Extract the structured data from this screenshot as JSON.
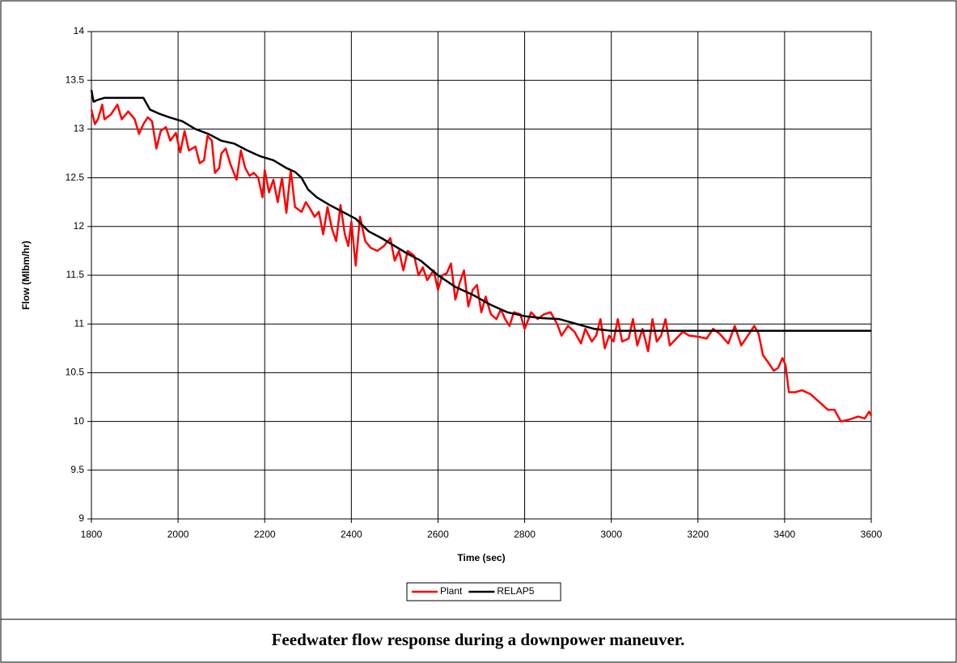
{
  "chart_data": {
    "type": "line",
    "caption": "Feedwater flow response during a downpower maneuver.",
    "x_label": "Time (sec)",
    "y_label": "Flow (Mlbm/hr)",
    "xlim": [
      1800,
      3600
    ],
    "xticks": [
      1800,
      2000,
      2200,
      2400,
      2600,
      2800,
      3000,
      3200,
      3400,
      3600
    ],
    "ylim": [
      9,
      14
    ],
    "yticks": [
      9,
      9.5,
      10,
      10.5,
      11,
      11.5,
      12,
      12.5,
      13,
      13.5,
      14
    ],
    "grid": true,
    "legend": "bottom",
    "series": [
      {
        "name": "Plant",
        "color": "#ff0000",
        "x": [
          1800,
          1808,
          1815,
          1825,
          1830,
          1845,
          1860,
          1870,
          1885,
          1900,
          1910,
          1920,
          1930,
          1940,
          1950,
          1960,
          1972,
          1982,
          1995,
          2005,
          2015,
          2025,
          2040,
          2050,
          2060,
          2068,
          2078,
          2085,
          2095,
          2100,
          2110,
          2120,
          2135,
          2145,
          2155,
          2165,
          2175,
          2185,
          2195,
          2200,
          2210,
          2220,
          2230,
          2240,
          2250,
          2260,
          2270,
          2285,
          2295,
          2305,
          2315,
          2325,
          2335,
          2345,
          2355,
          2365,
          2375,
          2385,
          2393,
          2400,
          2410,
          2420,
          2432,
          2445,
          2460,
          2475,
          2490,
          2500,
          2510,
          2520,
          2530,
          2545,
          2555,
          2565,
          2575,
          2590,
          2600,
          2610,
          2620,
          2630,
          2640,
          2650,
          2660,
          2670,
          2680,
          2690,
          2700,
          2710,
          2722,
          2735,
          2745,
          2755,
          2765,
          2775,
          2790,
          2800,
          2815,
          2830,
          2845,
          2860,
          2875,
          2885,
          2900,
          2915,
          2930,
          2940,
          2955,
          2965,
          2975,
          2985,
          2995,
          3005,
          3015,
          3025,
          3040,
          3050,
          3060,
          3072,
          3085,
          3095,
          3105,
          3115,
          3125,
          3135,
          3150,
          3165,
          3180,
          3200,
          3220,
          3235,
          3250,
          3270,
          3285,
          3300,
          3315,
          3330,
          3340,
          3350,
          3360,
          3375,
          3385,
          3395,
          3402,
          3410,
          3425,
          3440,
          3460,
          3480,
          3500,
          3515,
          3530,
          3550,
          3570,
          3585,
          3595,
          3600
        ],
        "values": [
          13.2,
          13.05,
          13.1,
          13.25,
          13.1,
          13.15,
          13.25,
          13.1,
          13.18,
          13.1,
          12.95,
          13.05,
          13.12,
          13.08,
          12.8,
          12.98,
          13.02,
          12.88,
          12.96,
          12.76,
          12.98,
          12.78,
          12.82,
          12.65,
          12.68,
          12.93,
          12.88,
          12.55,
          12.6,
          12.75,
          12.8,
          12.65,
          12.48,
          12.78,
          12.6,
          12.52,
          12.55,
          12.5,
          12.3,
          12.58,
          12.35,
          12.48,
          12.25,
          12.5,
          12.14,
          12.58,
          12.2,
          12.15,
          12.25,
          12.18,
          12.1,
          12.15,
          11.92,
          12.2,
          11.98,
          11.85,
          12.22,
          11.92,
          11.8,
          12.05,
          11.6,
          12.1,
          11.85,
          11.78,
          11.75,
          11.8,
          11.88,
          11.65,
          11.75,
          11.55,
          11.75,
          11.7,
          11.5,
          11.58,
          11.45,
          11.55,
          11.35,
          11.5,
          11.52,
          11.62,
          11.25,
          11.42,
          11.55,
          11.18,
          11.35,
          11.4,
          11.12,
          11.28,
          11.1,
          11.05,
          11.15,
          11.05,
          10.98,
          11.12,
          11.1,
          10.95,
          11.12,
          11.05,
          11.1,
          11.12,
          11.0,
          10.88,
          10.98,
          10.92,
          10.8,
          10.95,
          10.82,
          10.88,
          11.05,
          10.75,
          10.88,
          10.82,
          11.05,
          10.82,
          10.85,
          11.05,
          10.78,
          10.95,
          10.72,
          11.05,
          10.82,
          10.88,
          11.05,
          10.78,
          10.85,
          10.92,
          10.88,
          10.87,
          10.85,
          10.95,
          10.9,
          10.8,
          10.98,
          10.78,
          10.88,
          10.98,
          10.9,
          10.68,
          10.62,
          10.52,
          10.55,
          10.65,
          10.58,
          10.3,
          10.3,
          10.32,
          10.28,
          10.2,
          10.12,
          10.12,
          10.0,
          10.02,
          10.05,
          10.03,
          10.1,
          10.06
        ]
      },
      {
        "name": "RELAP5",
        "color": "#000000",
        "x": [
          1800,
          1805,
          1815,
          1830,
          1920,
          1935,
          1955,
          1980,
          2010,
          2040,
          2070,
          2100,
          2130,
          2160,
          2190,
          2220,
          2250,
          2270,
          2285,
          2300,
          2320,
          2350,
          2380,
          2410,
          2440,
          2470,
          2500,
          2530,
          2560,
          2600,
          2640,
          2680,
          2720,
          2760,
          2800,
          2840,
          2880,
          2920,
          2960,
          3000,
          3600
        ],
        "values": [
          13.4,
          13.28,
          13.3,
          13.32,
          13.32,
          13.2,
          13.16,
          13.12,
          13.08,
          13.0,
          12.95,
          12.88,
          12.85,
          12.78,
          12.72,
          12.68,
          12.6,
          12.56,
          12.5,
          12.38,
          12.3,
          12.22,
          12.15,
          12.08,
          11.95,
          11.88,
          11.8,
          11.72,
          11.65,
          11.5,
          11.38,
          11.3,
          11.2,
          11.12,
          11.08,
          11.06,
          11.05,
          11.0,
          10.95,
          10.93,
          10.93
        ]
      }
    ]
  }
}
